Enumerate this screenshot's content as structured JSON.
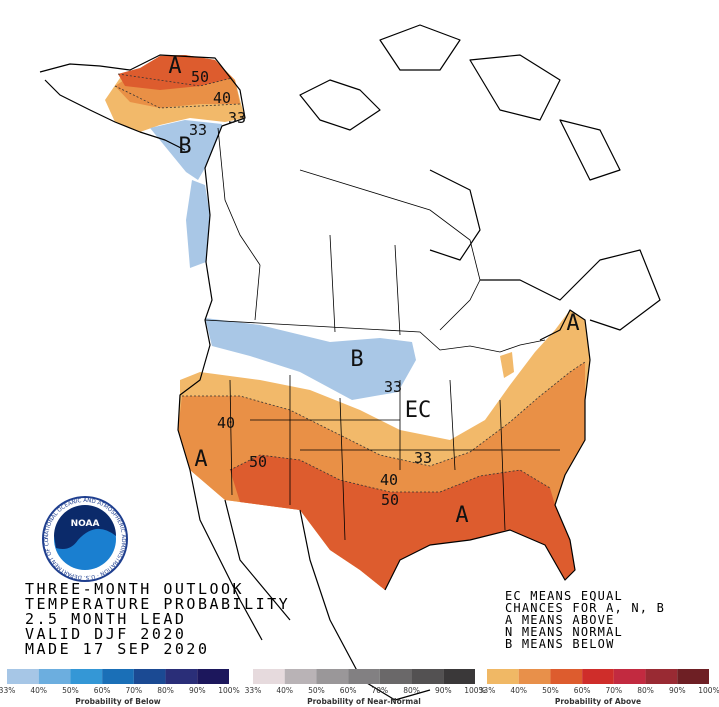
{
  "title_lines": [
    "THREE-MONTH OUTLOOK",
    "TEMPERATURE PROBABILITY",
    "2.5 MONTH LEAD",
    "VALID DJF 2020",
    "MADE 17 SEP 2020"
  ],
  "key_lines": [
    "EC MEANS EQUAL",
    "CHANCES FOR A, N, B",
    "A MEANS ABOVE",
    "N MEANS NORMAL",
    "B MEANS BELOW"
  ],
  "logo": {
    "text": "NOAA",
    "ring_text": "NATIONAL OCEANIC AND ATMOSPHERIC ADMINISTRATION · U.S. DEPARTMENT OF COMMERCE"
  },
  "map_labels": [
    "A",
    "50",
    "40",
    "33",
    "33",
    "B",
    "B",
    "33",
    "EC",
    "40",
    "A",
    "50",
    "40",
    "50",
    "33",
    "A",
    "A"
  ],
  "legends": [
    {
      "caption": "Probability of Below",
      "colors": [
        "#a6c6e6",
        "#6caedf",
        "#3497d6",
        "#1a6fb7",
        "#1b4a93",
        "#2a2e78",
        "#1c175c"
      ],
      "ticks": [
        "33%",
        "40%",
        "50%",
        "60%",
        "70%",
        "80%",
        "90%",
        "100%"
      ]
    },
    {
      "caption": "Probability of Near-Normal",
      "colors": [
        "#e6dadd",
        "#b9b3b6",
        "#9a9799",
        "#828082",
        "#6a6869",
        "#535152",
        "#3a3839"
      ],
      "ticks": [
        "33%",
        "40%",
        "50%",
        "60%",
        "70%",
        "80%",
        "90%",
        "100%"
      ]
    },
    {
      "caption": "Probability of Above",
      "colors": [
        "#f0b865",
        "#e8904a",
        "#dd5c2e",
        "#cf2d2a",
        "#c22a40",
        "#992a33",
        "#6e1f24"
      ],
      "ticks": [
        "33%",
        "40%",
        "50%",
        "60%",
        "70%",
        "80%",
        "90%",
        "100%"
      ]
    }
  ]
}
